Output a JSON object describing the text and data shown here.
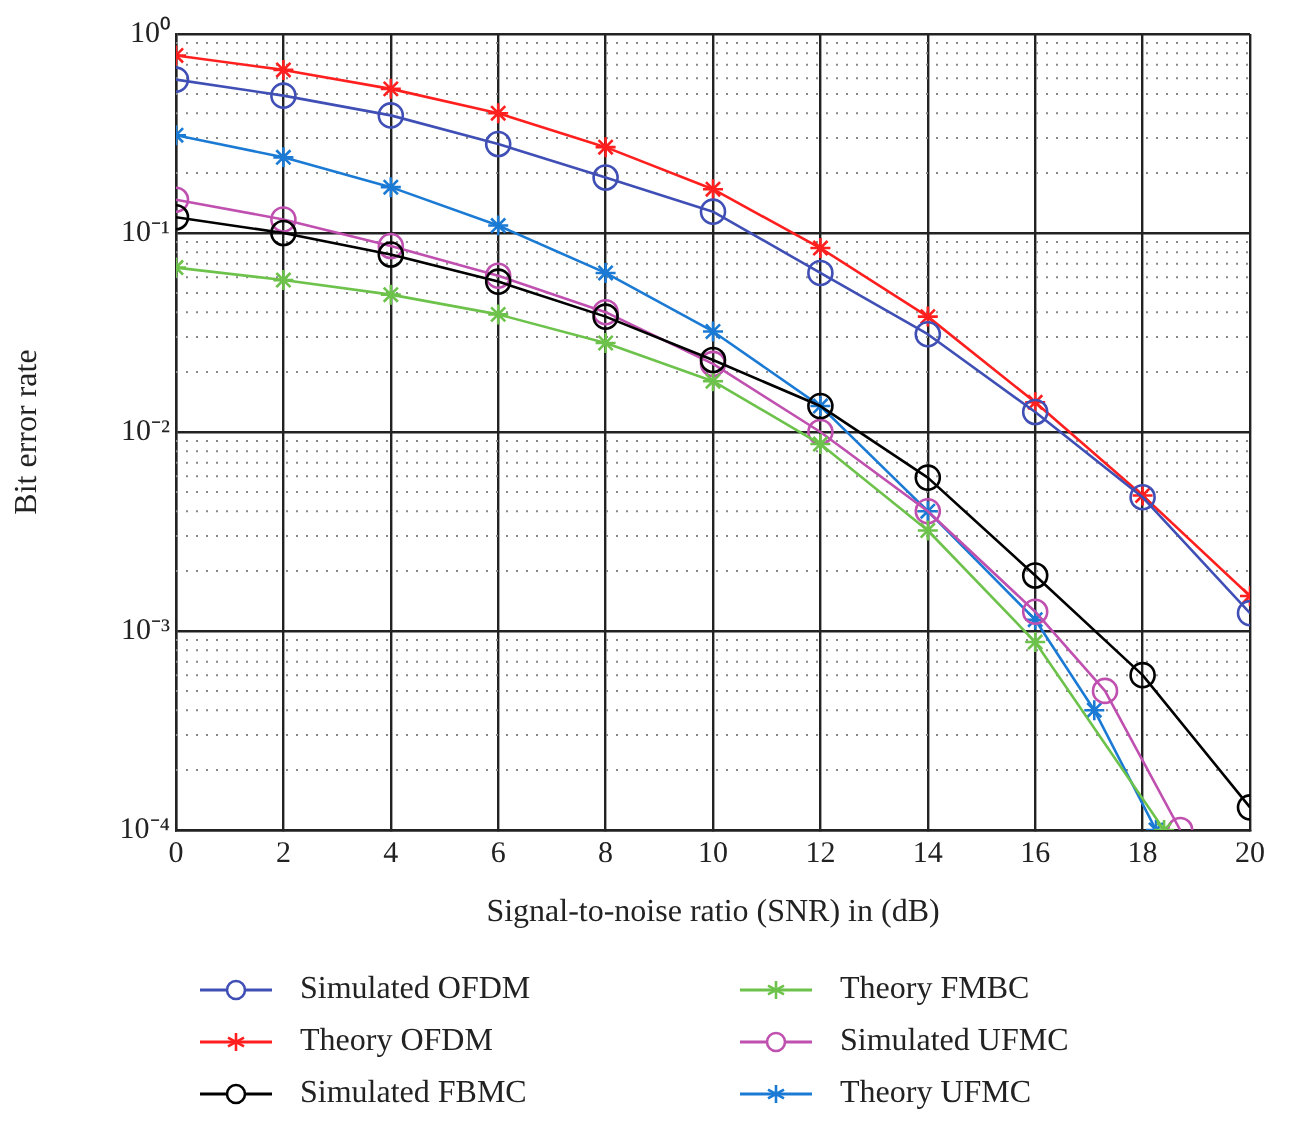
{
  "chart_data": {
    "type": "line",
    "xlabel": "Signal-to-noise ratio (SNR) in (dB)",
    "ylabel": "Bit error rate",
    "log": "y",
    "grid": true,
    "legend": "bottom",
    "line_style": "solid",
    "xlim": [
      0,
      20
    ],
    "xticks": [
      0,
      2,
      4,
      6,
      8,
      10,
      12,
      14,
      16,
      18,
      20
    ],
    "ylim": [
      0.0001,
      1
    ],
    "yticks": [
      {
        "value": 0.0001,
        "label": "10⁻⁴"
      },
      {
        "value": 0.001,
        "label": "10⁻³"
      },
      {
        "value": 0.01,
        "label": "10⁻²"
      },
      {
        "value": 0.1,
        "label": "10⁻¹"
      },
      {
        "value": 1,
        "label": "10⁰"
      }
    ],
    "series": [
      {
        "name": "Simulated OFDM",
        "color": "#3f4fb5",
        "marker": "circle",
        "x": [
          0,
          2,
          4,
          6,
          8,
          10,
          12,
          14,
          16,
          18,
          20
        ],
        "values": [
          0.59,
          0.49,
          0.39,
          0.28,
          0.19,
          0.128,
          0.063,
          0.031,
          0.0126,
          0.0047,
          0.00123
        ]
      },
      {
        "name": "Theory OFDM",
        "color": "#ff1f1f",
        "marker": "cross",
        "x": [
          0,
          2,
          4,
          6,
          8,
          10,
          12,
          14,
          16,
          18,
          20
        ],
        "values": [
          0.78,
          0.66,
          0.53,
          0.4,
          0.27,
          0.166,
          0.084,
          0.038,
          0.0141,
          0.0048,
          0.0015
        ]
      },
      {
        "name": "Simulated FBMC",
        "color": "#000000",
        "marker": "circle",
        "x": [
          0,
          2,
          4,
          6,
          8,
          10,
          12,
          14,
          16,
          18,
          20
        ],
        "values": [
          0.12,
          0.1,
          0.078,
          0.057,
          0.038,
          0.023,
          0.0135,
          0.0059,
          0.0019,
          0.0006,
          0.00013
        ]
      },
      {
        "name": "Theory FMBC",
        "color": "#6cc24a",
        "marker": "cross",
        "x": [
          0,
          2,
          4,
          6,
          8,
          10,
          12,
          14,
          16,
          18.4
        ],
        "values": [
          0.067,
          0.058,
          0.049,
          0.039,
          0.028,
          0.018,
          0.0087,
          0.0032,
          0.00088,
          0.0001
        ]
      },
      {
        "name": "Simulated UFMC",
        "color": "#c050b0",
        "marker": "circle",
        "x": [
          0,
          2,
          4,
          6,
          8,
          10,
          12,
          14,
          16,
          17.3,
          18.7
        ],
        "values": [
          0.147,
          0.117,
          0.086,
          0.061,
          0.04,
          0.022,
          0.01,
          0.004,
          0.00125,
          0.0005,
          0.0001
        ]
      },
      {
        "name": "Theory UFMC",
        "color": "#1a7ad4",
        "marker": "cross",
        "x": [
          0,
          2,
          4,
          6,
          8,
          10,
          12,
          14,
          16,
          17.1,
          18.25
        ],
        "values": [
          0.31,
          0.24,
          0.17,
          0.109,
          0.063,
          0.032,
          0.0135,
          0.004,
          0.00114,
          0.0004,
          0.0001
        ]
      }
    ]
  }
}
